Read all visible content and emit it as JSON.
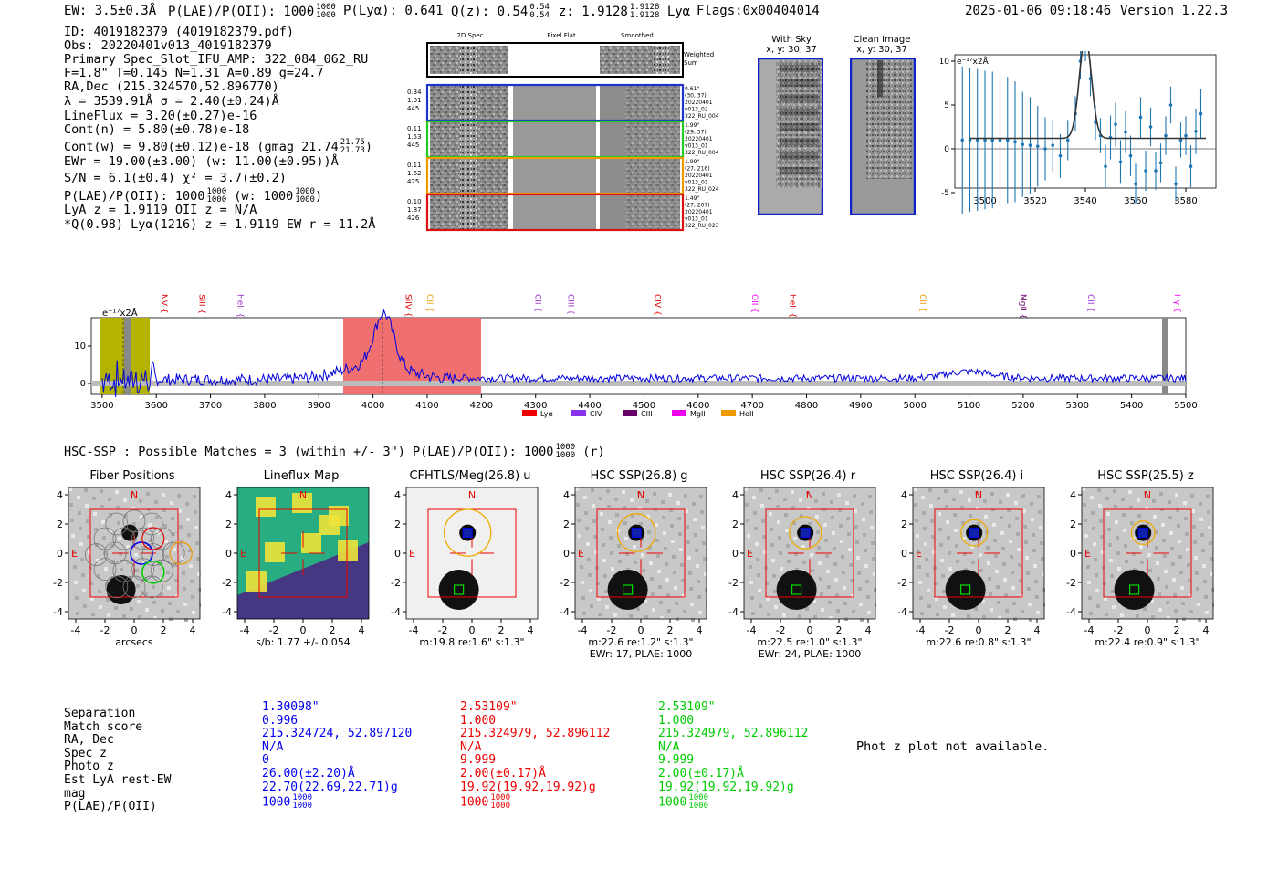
{
  "header": {
    "ew": "EW: 3.5±0.3Å",
    "plae_label": "P(LAE)/P(OII): 1000",
    "plae_num": "1000",
    "plae_den": "1000",
    "plya": "P(Lyα): 0.641",
    "qz_label": "Q(z): 0.54",
    "qz_num": "0.54",
    "qz_den": "0.54",
    "z_label": "z: 1.9128",
    "z_num": "1.9128",
    "z_den": "1.9128",
    "line": "Lyα",
    "flags": "Flags:0x00404014",
    "timestamp": "2025-01-06 09:18:46",
    "version": "Version 1.22.3"
  },
  "info": {
    "id": "ID: 4019182379 (4019182379.pdf)",
    "obs": "Obs: 20220401v013_4019182379",
    "primary": "Primary Spec_Slot_IFU_AMP: 322_084_062_RU",
    "params": "F=1.8\"  T=0.145  N=1.31  A=0.89  g=24.7",
    "radec": "RA,Dec (215.324570,52.896770)",
    "lambda": "λ = 3539.91Å  σ = 2.40(±0.24)Å",
    "lineflux": "LineFlux = 3.20(±0.27)e-16",
    "contn": "Cont(n) = 5.80(±0.78)e-18",
    "contw": "Cont(w) = 9.80(±0.12)e-18 (gmag 21.74",
    "contw_num": "21.75",
    "contw_den": "21.73",
    "contw_close": ")",
    "ewr": "EWr = 19.00(±3.00) (w: 11.00(±0.95))Å",
    "sn": "S/N = 6.1(±0.4)  χ² = 3.7(±0.2)",
    "plae": "P(LAE)/P(OII): 1000",
    "plae_num": "1000",
    "plae_den": "1000",
    "plae_w": "(w: 1000",
    "plae_w_num": "1000",
    "plae_w_den": "1000",
    "plae_w_close": ")",
    "lya": "LyA z = 1.9119  OII z = N/A",
    "q": "*Q(0.98) Lyα(1216) z = 1.9119  EW r = 11.2Å"
  },
  "cutouts": {
    "headers": [
      "2D Spec",
      "Pixel Flat",
      "Smoothed"
    ],
    "weighted": "Weighted Sum",
    "rows": [
      {
        "vals": [
          "0.34",
          "1.01",
          "445"
        ],
        "note": [
          "0.61\"",
          "(30, 37)",
          "20220401",
          "v013_02",
          "322_RU_004"
        ],
        "color": "#2233cc"
      },
      {
        "vals": [
          "0.11",
          "1.53",
          "445"
        ],
        "note": [
          "1.99\"",
          "(29, 37)",
          "20220401",
          "v013_01",
          "322_RU_004"
        ],
        "color": "#22cc22"
      },
      {
        "vals": [
          "0.11",
          "1.62",
          "425"
        ],
        "note": [
          "1.99\"",
          "(27, 216)",
          "20220401",
          "v013_03",
          "322_RU_024"
        ],
        "color": "#ee9900"
      },
      {
        "vals": [
          "0.10",
          "1.87",
          "426"
        ],
        "note": [
          "1.49\"",
          "(27, 207)",
          "20220401",
          "v013_01",
          "322_RU_023"
        ],
        "color": "#dd1111"
      }
    ]
  },
  "sky": {
    "title": "With Sky",
    "coords": "x, y: 30, 37"
  },
  "clean": {
    "title": "Clean Image",
    "coords": "x, y: 30, 37"
  },
  "fitplot": {
    "ylabel": "e⁻¹⁷x2Å",
    "xticks": [
      "3500",
      "3520",
      "3540",
      "3560",
      "3580"
    ],
    "yticks": [
      "10",
      "5",
      "0",
      "-5"
    ]
  },
  "spectrum": {
    "ylabel": "e⁻¹⁷x2Å",
    "xticks": [
      "3500",
      "3600",
      "3700",
      "3800",
      "3900",
      "4000",
      "4100",
      "4200",
      "4300",
      "4400",
      "4500",
      "4600",
      "4700",
      "4800",
      "4900",
      "5000",
      "5100",
      "5200",
      "5300",
      "5400",
      "5500"
    ],
    "yticks": [
      "10",
      "0"
    ],
    "lines": [
      {
        "label": "NV",
        "color": "#dd0000"
      },
      {
        "label": "SiII",
        "color": "#dd0000"
      },
      {
        "label": "HeII",
        "color": "#9933cc"
      },
      {
        "label": "SiIV",
        "color": "#dd0000"
      },
      {
        "label": "CII",
        "color": "#ee9900"
      },
      {
        "label": "CII",
        "color": "#9933cc"
      },
      {
        "label": "CIII",
        "color": "#9933cc"
      },
      {
        "label": "CIV",
        "color": "#dd0000"
      },
      {
        "label": "OII",
        "color": "#ee00ee"
      },
      {
        "label": "HeII",
        "color": "#dd0000"
      },
      {
        "label": "CII",
        "color": "#ee9900"
      },
      {
        "label": "MgII",
        "color": "#660066"
      },
      {
        "label": "CII",
        "color": "#9933cc"
      },
      {
        "label": "Hγ",
        "color": "#ee00ee"
      }
    ],
    "legend": [
      {
        "label": "Lyα",
        "color": "#ee0000"
      },
      {
        "label": "CIV",
        "color": "#8833ee"
      },
      {
        "label": "CIII",
        "color": "#660066"
      },
      {
        "label": "MgII",
        "color": "#ee00ee"
      },
      {
        "label": "HeII",
        "color": "#ee9900"
      }
    ]
  },
  "hsc": {
    "summary": "HSC-SSP : Possible Matches = 3 (within +/- 3\")  P(LAE)/P(OII): 1000",
    "summary_num": "1000",
    "summary_den": "1000",
    "summary_end": "(r)"
  },
  "gallery": [
    {
      "title": "Fiber Positions",
      "sub1": "arcsecs",
      "sub2": ""
    },
    {
      "title": "Lineflux Map",
      "sub1": "s/b: 1.77 +/- 0.054",
      "sub2": ""
    },
    {
      "title": "CFHTLS/Meg(26.8) u",
      "sub1": "m:19.8  re:1.6\"  s:1.3\"",
      "sub2": ""
    },
    {
      "title": "HSC SSP(26.8) g",
      "sub1": "m:22.6  re:1.2\"  s:1.3\"",
      "sub2": "EWr: 17, PLAE: 1000"
    },
    {
      "title": "HSC SSP(26.4) r",
      "sub1": "m:22.5  re:1.0\"  s:1.3\"",
      "sub2": "EWr: 24, PLAE: 1000"
    },
    {
      "title": "HSC SSP(26.4) i",
      "sub1": "m:22.6  re:0.8\"  s:1.3\"",
      "sub2": ""
    },
    {
      "title": "HSC SSP(25.5) z",
      "sub1": "m:22.4  re:0.9\"  s:1.3\"",
      "sub2": ""
    }
  ],
  "axes": {
    "yticks": [
      "4",
      "2",
      "0",
      "-2",
      "-4"
    ],
    "xticks": [
      "-4",
      "-2",
      "0",
      "2",
      "4"
    ],
    "n": "N",
    "e": "E"
  },
  "table": {
    "labels": [
      "Separation",
      "Match score",
      "RA, Dec",
      "Spec z",
      "Photo z",
      "Est LyA rest-EW",
      "mag",
      "P(LAE)/P(OII)"
    ],
    "columns": [
      {
        "color": "#0000ee",
        "values": [
          "1.30098\"",
          "0.996",
          "215.324724, 52.897120",
          "N/A",
          "0",
          "26.00(±2.20)Å",
          "22.70(22.69,22.71)g",
          "1000"
        ],
        "num": "1000",
        "den": "1000"
      },
      {
        "color": "#ee0000",
        "values": [
          "2.53109\"",
          "1.000",
          "215.324979, 52.896112",
          "N/A",
          "9.999",
          "2.00(±0.17)Å",
          "19.92(19.92,19.92)g",
          "1000"
        ],
        "num": "1000",
        "den": "1000"
      },
      {
        "color": "#00cc00",
        "values": [
          "2.53109\"",
          "1.000",
          "215.324979, 52.896112",
          "N/A",
          "9.999",
          "2.00(±0.17)Å",
          "19.92(19.92,19.92)g",
          "1000"
        ],
        "num": "1000",
        "den": "1000"
      }
    ],
    "photz": "Phot z plot not available."
  }
}
